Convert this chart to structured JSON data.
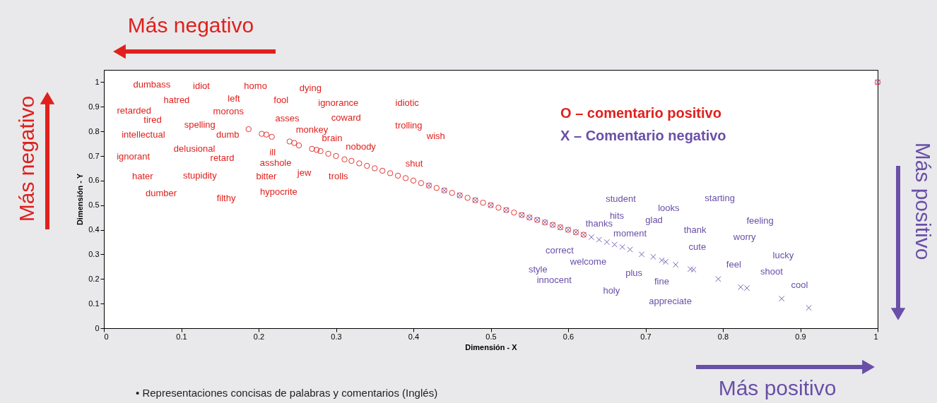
{
  "chart_data": {
    "type": "scatter",
    "xlabel": "Dimensión - X",
    "ylabel": "Dimensión - Y",
    "xlim": [
      0,
      1
    ],
    "ylim": [
      0,
      1.05
    ],
    "xticks": [
      0,
      0.1,
      0.2,
      0.3,
      0.4,
      0.5,
      0.6,
      0.7,
      0.8,
      0.9,
      1
    ],
    "yticks": [
      0,
      0.1,
      0.2,
      0.3,
      0.4,
      0.5,
      0.6,
      0.7,
      0.8,
      0.9,
      1
    ],
    "grid": false,
    "legend": "top right",
    "series": [
      {
        "name": "O – comentario positivo",
        "color": "#e0201c",
        "marker": "circle",
        "x": [
          0.187,
          0.204,
          0.21,
          0.217,
          0.24,
          0.246,
          0.252,
          0.269,
          0.275,
          0.28,
          0.29,
          0.3,
          0.311,
          0.32,
          0.33,
          0.34,
          0.35,
          0.36,
          0.37,
          0.38,
          0.39,
          0.4,
          0.41,
          0.42,
          0.43,
          0.44,
          0.45,
          0.46,
          0.47,
          0.48,
          0.49,
          0.5,
          0.51,
          0.52,
          0.53,
          0.54,
          0.55,
          0.56,
          0.57,
          0.58,
          0.59,
          0.6,
          0.61,
          0.62,
          1.0
        ],
        "values": [
          0.809,
          0.79,
          0.787,
          0.778,
          0.759,
          0.753,
          0.743,
          0.729,
          0.725,
          0.72,
          0.709,
          0.7,
          0.686,
          0.68,
          0.67,
          0.66,
          0.65,
          0.64,
          0.63,
          0.62,
          0.61,
          0.6,
          0.59,
          0.58,
          0.57,
          0.56,
          0.55,
          0.54,
          0.53,
          0.52,
          0.51,
          0.5,
          0.49,
          0.48,
          0.47,
          0.46,
          0.45,
          0.44,
          0.43,
          0.42,
          0.41,
          0.4,
          0.39,
          0.38,
          1.0
        ]
      },
      {
        "name": "X – Comentario negativo",
        "color": "#6a4fa8",
        "marker": "cross",
        "x": [
          0.42,
          0.44,
          0.46,
          0.48,
          0.5,
          0.52,
          0.54,
          0.55,
          0.56,
          0.57,
          0.58,
          0.59,
          0.6,
          0.61,
          0.62,
          0.63,
          0.64,
          0.65,
          0.66,
          0.67,
          0.68,
          0.695,
          0.71,
          0.721,
          0.726,
          0.739,
          0.758,
          0.762,
          0.794,
          0.823,
          0.831,
          0.876,
          0.911,
          1.0
        ],
        "values": [
          0.58,
          0.56,
          0.54,
          0.52,
          0.5,
          0.48,
          0.46,
          0.45,
          0.44,
          0.43,
          0.42,
          0.41,
          0.4,
          0.39,
          0.38,
          0.37,
          0.36,
          0.35,
          0.34,
          0.33,
          0.32,
          0.3,
          0.29,
          0.276,
          0.27,
          0.258,
          0.24,
          0.238,
          0.2,
          0.167,
          0.163,
          0.12,
          0.083,
          1.0
        ]
      }
    ],
    "annotations": [
      "Más negativo",
      "Más negativo",
      "Más positivo",
      "Más positivo",
      "• Representaciones concisas de palabras y comentarios (Inglés)",
      "dumbass",
      "idiot",
      "homo",
      "dying",
      "hatred",
      "left",
      "fool",
      "ignorance",
      "idiotic",
      "retarded",
      "morons",
      "tired",
      "asses",
      "coward",
      "spelling",
      "trolling",
      "intellectual",
      "dumb",
      "monkey",
      "wish",
      "brain",
      "delusional",
      "nobody",
      "ill",
      "ignorant",
      "retard",
      "asshole",
      "shut",
      "hater",
      "stupidity",
      "bitter",
      "jew",
      "trolls",
      "dumber",
      "filthy",
      "hypocrite",
      "student",
      "looks",
      "starting",
      "hits",
      "thanks",
      "glad",
      "thank",
      "moment",
      "correct",
      "cute",
      "welcome",
      "feel",
      "style",
      "plus",
      "innocent",
      "fine",
      "holy",
      "appreciate",
      "feeling",
      "worry",
      "lucky",
      "shoot",
      "cool"
    ]
  }
}
